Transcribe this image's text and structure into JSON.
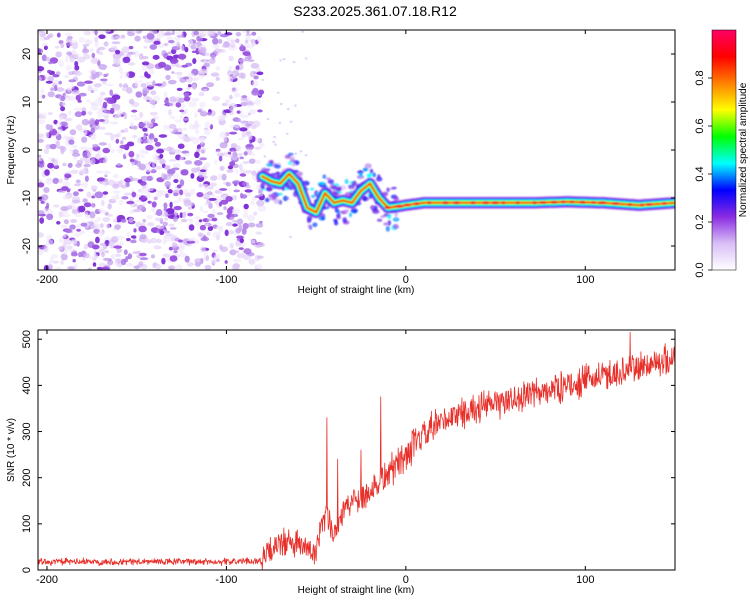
{
  "figure": {
    "title": "S233.2025.361.07.18.R12"
  },
  "chart_data": [
    {
      "type": "heatmap",
      "xlabel": "Height of straight line (km)",
      "ylabel": "Frequency (Hz)",
      "xlim": [
        -205,
        150
      ],
      "ylim": [
        -25,
        25
      ],
      "xticks": [
        -200,
        -100,
        0,
        100
      ],
      "yticks": [
        -20,
        -10,
        0,
        10,
        20
      ],
      "colorbar": {
        "label": "Normalized spectral amplitude",
        "range": [
          0,
          1
        ],
        "ticks": [
          0.0,
          0.2,
          0.4,
          0.6,
          0.8
        ],
        "tick_labels": [
          "0.0",
          "0.2",
          "0.4",
          "0.6",
          "0.8"
        ],
        "colormap": [
          "#ffffff",
          "#d9bff7",
          "#8a2be2",
          "#0000ff",
          "#00ffff",
          "#00ff00",
          "#ffff00",
          "#ff8000",
          "#ff0000",
          "#ff0066"
        ]
      },
      "noise_region": {
        "x_range": [
          -205,
          -80
        ],
        "y_range": [
          -25,
          25
        ]
      },
      "ridge": {
        "x": [
          -80,
          -75,
          -70,
          -65,
          -60,
          -55,
          -50,
          -45,
          -40,
          -35,
          -30,
          -25,
          -20,
          -15,
          -10,
          -5,
          0,
          10,
          30,
          50,
          70,
          90,
          110,
          130,
          150
        ],
        "y": [
          -5.5,
          -6.5,
          -7,
          -5,
          -7,
          -12,
          -13,
          -9,
          -11,
          -10.5,
          -11,
          -8.5,
          -7,
          -10,
          -12,
          -11.8,
          -11.5,
          -11,
          -11,
          -11,
          -11,
          -10.8,
          -11,
          -11.5,
          -11
        ]
      }
    },
    {
      "type": "line",
      "xlabel": "Height of straight line (km)",
      "ylabel": "SNR (10 * v/v)",
      "xlim": [
        -205,
        150
      ],
      "ylim": [
        0,
        520
      ],
      "xticks": [
        -200,
        -100,
        0,
        100
      ],
      "yticks": [
        0,
        100,
        200,
        300,
        400,
        500
      ],
      "color": "#e8302a",
      "trend": {
        "x": [
          -205,
          -150,
          -100,
          -80,
          -70,
          -60,
          -50,
          -45,
          -40,
          -35,
          -30,
          -20,
          -10,
          0,
          10,
          20,
          30,
          50,
          70,
          90,
          110,
          130,
          150
        ],
        "y": [
          18,
          18,
          18,
          20,
          60,
          55,
          35,
          120,
          80,
          130,
          150,
          170,
          210,
          250,
          290,
          320,
          340,
          360,
          380,
          400,
          420,
          440,
          460
        ]
      },
      "spikes": [
        {
          "x": -44,
          "y": 330
        },
        {
          "x": -38,
          "y": 240
        },
        {
          "x": -25,
          "y": 260
        },
        {
          "x": -14,
          "y": 375
        },
        {
          "x": 125,
          "y": 515
        }
      ]
    }
  ]
}
